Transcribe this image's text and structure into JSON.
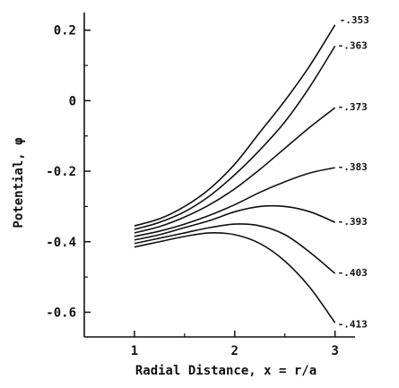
{
  "chart_data": {
    "type": "line",
    "title": "",
    "xlabel": "Radial Distance, x = r/a",
    "ylabel": "Potential, φ",
    "xlim": [
      0.5,
      3.2
    ],
    "ylim": [
      -0.67,
      0.25
    ],
    "x_ticks": [
      {
        "value": 1,
        "label": "1"
      },
      {
        "value": 2,
        "label": "2"
      },
      {
        "value": 3,
        "label": "3"
      }
    ],
    "y_ticks": [
      {
        "value": 0.2,
        "label": "0.2"
      },
      {
        "value": 0,
        "label": "0"
      },
      {
        "value": -0.2,
        "label": "-0.2"
      },
      {
        "value": -0.4,
        "label": "-0.4"
      },
      {
        "value": -0.6,
        "label": "-0.6"
      }
    ],
    "grid": false,
    "legend": "none",
    "x": [
      1.0,
      1.25,
      1.5,
      1.75,
      2.0,
      2.25,
      2.5,
      2.75,
      3.0
    ],
    "series": [
      {
        "name": "-.353",
        "values": [
          -0.355,
          -0.335,
          -0.3,
          -0.25,
          -0.18,
          -0.09,
          0.0,
          0.1,
          0.215
        ]
      },
      {
        "name": "-.363",
        "values": [
          -0.365,
          -0.345,
          -0.315,
          -0.27,
          -0.21,
          -0.14,
          -0.06,
          0.04,
          0.155
        ]
      },
      {
        "name": "-.373",
        "values": [
          -0.375,
          -0.357,
          -0.33,
          -0.295,
          -0.25,
          -0.195,
          -0.135,
          -0.075,
          -0.02
        ]
      },
      {
        "name": "-.383",
        "values": [
          -0.385,
          -0.37,
          -0.35,
          -0.325,
          -0.295,
          -0.26,
          -0.23,
          -0.205,
          -0.19
        ]
      },
      {
        "name": "-.393",
        "values": [
          -0.395,
          -0.38,
          -0.36,
          -0.34,
          -0.315,
          -0.3,
          -0.3,
          -0.315,
          -0.345
        ]
      },
      {
        "name": "-.403",
        "values": [
          -0.405,
          -0.39,
          -0.375,
          -0.36,
          -0.35,
          -0.355,
          -0.38,
          -0.43,
          -0.49
        ]
      },
      {
        "name": "-.413",
        "values": [
          -0.415,
          -0.4,
          -0.385,
          -0.375,
          -0.38,
          -0.405,
          -0.455,
          -0.53,
          -0.63
        ]
      }
    ]
  }
}
